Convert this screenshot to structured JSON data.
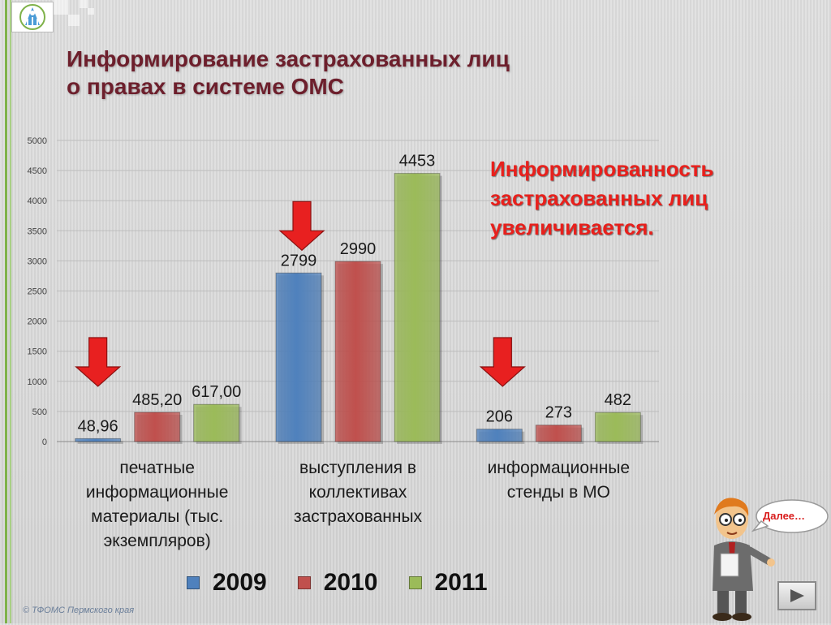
{
  "slide": {
    "title_line1": "Информирование застрахованных лиц",
    "title_line2": "о правах в системе ОМС",
    "callout": [
      "Информированность",
      "застрахованных лиц",
      "увеличивается."
    ],
    "speech_bubble": "Далее…",
    "copyright": "© ТФОМС Пермского края"
  },
  "colors": {
    "series_2009": "#4f81bd",
    "series_2010": "#c0504d",
    "series_2011": "#9bbb59",
    "title": "#6d1f2c",
    "callout": "#e8201c",
    "arrow": "#e82020"
  },
  "icons": {
    "logo": "tfoms-logo-icon",
    "arrow": "down-arrow-icon",
    "next": "play-triangle-icon",
    "mascot": "presenter-mascot-icon"
  },
  "chart_data": {
    "type": "bar",
    "categories": [
      "печатные информационные материалы (тыс. экземпляров)",
      "выступления в коллективах застрахованных",
      "информационные стенды в МО"
    ],
    "category_lines": [
      [
        "печатные",
        "информационные",
        "материалы (тыс.",
        "экземпляров)"
      ],
      [
        "выступления в",
        "коллективах",
        "застрахованных"
      ],
      [
        "информационные",
        "стенды в МО"
      ]
    ],
    "series": [
      {
        "name": "2009",
        "values": [
          48.96,
          2799,
          206
        ],
        "labels": [
          "48,96",
          "2799",
          "206"
        ]
      },
      {
        "name": "2010",
        "values": [
          485.2,
          2990,
          273
        ],
        "labels": [
          "485,20",
          "2990",
          "273"
        ]
      },
      {
        "name": "2011",
        "values": [
          617.0,
          4453,
          482
        ],
        "labels": [
          "617,00",
          "4453",
          "482"
        ]
      }
    ],
    "ylim": [
      0,
      5000
    ],
    "yticks": [
      "0",
      "500",
      "1000",
      "1500",
      "2000",
      "2500",
      "3000",
      "3500",
      "4000",
      "4500",
      "5000"
    ],
    "grid": true,
    "legend_position": "bottom",
    "title": "",
    "xlabel": "",
    "ylabel": ""
  }
}
